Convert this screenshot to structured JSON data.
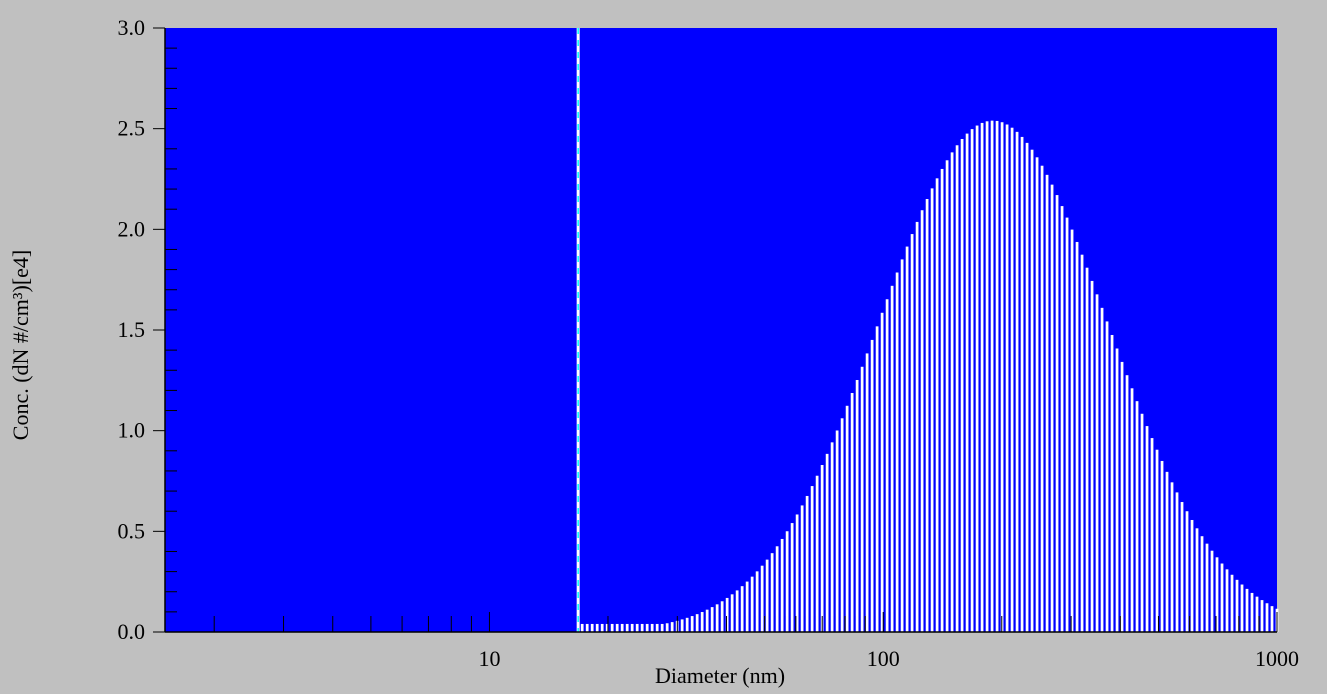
{
  "chart_data": {
    "type": "bar",
    "xlabel": "Diameter (nm)",
    "ylabel": "Conc. (dN #/cm³)[e4]",
    "x_scale": "log",
    "xlim": [
      1.5,
      1000
    ],
    "ylim": [
      0,
      3.0
    ],
    "x_tick_labels": [
      {
        "value": 10,
        "label": "10"
      },
      {
        "value": 100,
        "label": "100"
      },
      {
        "value": 1000,
        "label": "1000"
      }
    ],
    "y_tick_labels": [
      {
        "value": 0.0,
        "label": "0.0"
      },
      {
        "value": 0.5,
        "label": "0.5"
      },
      {
        "value": 1.0,
        "label": "1.0"
      },
      {
        "value": 1.5,
        "label": "1.5"
      },
      {
        "value": 2.0,
        "label": "2.0"
      },
      {
        "value": 2.5,
        "label": "2.5"
      },
      {
        "value": 3.0,
        "label": "3.0"
      }
    ],
    "marker_line_x": 16.8,
    "distribution": {
      "shape": "lognormal",
      "peak_diameter_nm": 190,
      "peak_value": 2.54,
      "geometric_std": 1.95,
      "min_diameter_nm": 17.2,
      "max_diameter_nm": 1000,
      "bins": 140
    },
    "colors": {
      "plot_background": "#0000ff",
      "bars": "#ffffff",
      "marker_line": "#00ffff",
      "page_background": "#c0c0c0"
    }
  }
}
